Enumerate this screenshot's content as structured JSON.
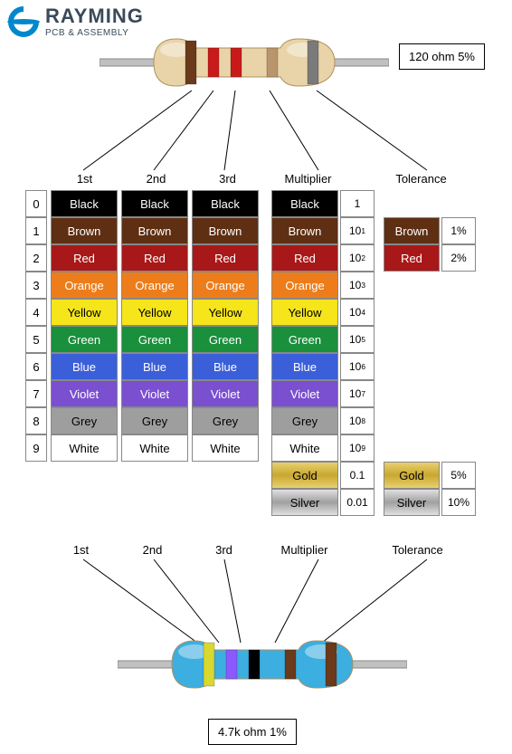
{
  "logo": {
    "main": "RAYMING",
    "sub": "PCB & ASSEMBLY",
    "color": "#0088cc"
  },
  "top_resistor": {
    "value_label": "120 ohm 5%",
    "body_colors": [
      "#e8d4a8",
      "#d4b780"
    ],
    "bands": [
      {
        "color": "#6b3a1a",
        "label": "1st"
      },
      {
        "color": "#c91a1a",
        "label": "2nd"
      },
      {
        "color": "#c91a1a",
        "label": "3rd"
      },
      {
        "color": "#b8956a",
        "label": "Multiplier"
      },
      {
        "color": "#7a7a7a",
        "label": "Tolerance"
      }
    ]
  },
  "bottom_resistor": {
    "value_label": "4.7k ohm 1%",
    "body_color": "#3caee0",
    "bands": [
      {
        "color": "#d8d830",
        "label": "1st"
      },
      {
        "color": "#8a5aff",
        "label": "2nd"
      },
      {
        "color": "#000000",
        "label": "3rd"
      },
      {
        "color": "#6b3a1a",
        "label": "Multiplier"
      },
      {
        "color": "#6b3a1a",
        "label": "Tolerance"
      }
    ]
  },
  "headers": {
    "idx": "",
    "c1": "1st",
    "c2": "2nd",
    "c3": "3rd",
    "mult": "Multiplier",
    "tol": "Tolerance"
  },
  "colors": [
    {
      "idx": "0",
      "name": "Black",
      "bg": "#000000",
      "fg": "#ffffff",
      "mval": "1"
    },
    {
      "idx": "1",
      "name": "Brown",
      "bg": "#5e2f12",
      "fg": "#ffffff",
      "mval": "10",
      "exp": "1"
    },
    {
      "idx": "2",
      "name": "Red",
      "bg": "#a81818",
      "fg": "#ffffff",
      "mval": "10",
      "exp": "2"
    },
    {
      "idx": "3",
      "name": "Orange",
      "bg": "#ed7d1a",
      "fg": "#ffffff",
      "mval": "10",
      "exp": "3"
    },
    {
      "idx": "4",
      "name": "Yellow",
      "bg": "#f5e51a",
      "fg": "#000000",
      "mval": "10",
      "exp": "4"
    },
    {
      "idx": "5",
      "name": "Green",
      "bg": "#1a8f3c",
      "fg": "#ffffff",
      "mval": "10",
      "exp": "5"
    },
    {
      "idx": "6",
      "name": "Blue",
      "bg": "#3a5fd8",
      "fg": "#ffffff",
      "mval": "10",
      "exp": "6"
    },
    {
      "idx": "7",
      "name": "Violet",
      "bg": "#7a4fd0",
      "fg": "#ffffff",
      "mval": "10",
      "exp": "7"
    },
    {
      "idx": "8",
      "name": "Grey",
      "bg": "#9e9e9e",
      "fg": "#000000",
      "mval": "10",
      "exp": "8"
    },
    {
      "idx": "9",
      "name": "White",
      "bg": "#ffffff",
      "fg": "#000000",
      "mval": "10",
      "exp": "9"
    }
  ],
  "mult_extra": [
    {
      "name": "Gold",
      "bg": "linear-gradient(#e8d070,#c9a830,#e8d070)",
      "fg": "#000000",
      "mval": "0.1"
    },
    {
      "name": "Silver",
      "bg": "linear-gradient(#e0e0e0,#a0a0a0,#e0e0e0)",
      "fg": "#000000",
      "mval": "0.01"
    }
  ],
  "tolerance": [
    {
      "name": "Brown",
      "bg": "#5e2f12",
      "fg": "#ffffff",
      "tval": "1%"
    },
    {
      "name": "Red",
      "bg": "#a81818",
      "fg": "#ffffff",
      "tval": "2%"
    }
  ],
  "tolerance_extra": [
    {
      "name": "Gold",
      "bg": "linear-gradient(#e8d070,#c9a830,#e8d070)",
      "fg": "#000000",
      "tval": "5%"
    },
    {
      "name": "Silver",
      "bg": "linear-gradient(#e0e0e0,#a0a0a0,#e0e0e0)",
      "fg": "#000000",
      "tval": "10%"
    }
  ]
}
